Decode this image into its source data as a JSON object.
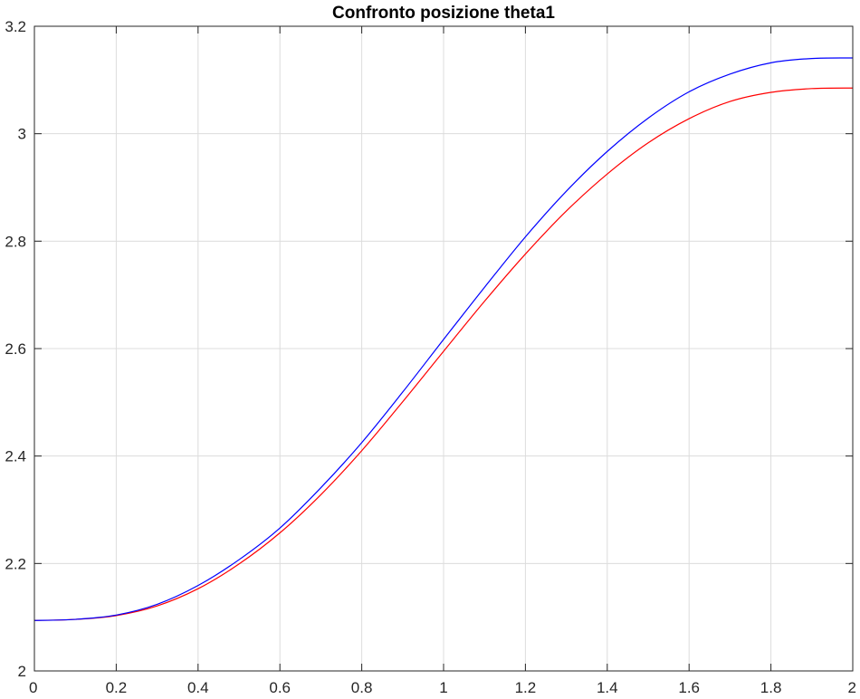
{
  "chart_data": {
    "type": "line",
    "title": "Confronto posizione theta1",
    "xlabel": "",
    "ylabel": "",
    "xlim": [
      0,
      2
    ],
    "ylim": [
      2,
      3.2
    ],
    "grid": true,
    "x_ticks": [
      0,
      0.2,
      0.4,
      0.6,
      0.8,
      1,
      1.2,
      1.4,
      1.6,
      1.8,
      2
    ],
    "x_tick_labels": [
      "0",
      "0.2",
      "0.4",
      "0.6",
      "0.8",
      "1",
      "1.2",
      "1.4",
      "1.6",
      "1.8",
      "2"
    ],
    "y_ticks": [
      2,
      2.2,
      2.4,
      2.6,
      2.8,
      3,
      3.2
    ],
    "y_tick_labels": [
      "2",
      "2.2",
      "2.4",
      "2.6",
      "2.8",
      "3",
      "3.2"
    ],
    "x": [
      0,
      0.1,
      0.2,
      0.3,
      0.4,
      0.5,
      0.6,
      0.7,
      0.8,
      0.9,
      1.0,
      1.1,
      1.2,
      1.3,
      1.4,
      1.5,
      1.6,
      1.7,
      1.8,
      1.9,
      2.0
    ],
    "series": [
      {
        "color": "#0000ff",
        "values": [
          2.094,
          2.096,
          2.104,
          2.124,
          2.159,
          2.207,
          2.266,
          2.341,
          2.425,
          2.519,
          2.617,
          2.714,
          2.808,
          2.893,
          2.967,
          3.029,
          3.078,
          3.111,
          3.132,
          3.14,
          3.141
        ]
      },
      {
        "color": "#ff0000",
        "values": [
          2.094,
          2.096,
          2.103,
          2.121,
          2.153,
          2.199,
          2.257,
          2.328,
          2.41,
          2.501,
          2.595,
          2.688,
          2.776,
          2.856,
          2.925,
          2.983,
          3.028,
          3.06,
          3.077,
          3.084,
          3.085
        ]
      }
    ]
  }
}
